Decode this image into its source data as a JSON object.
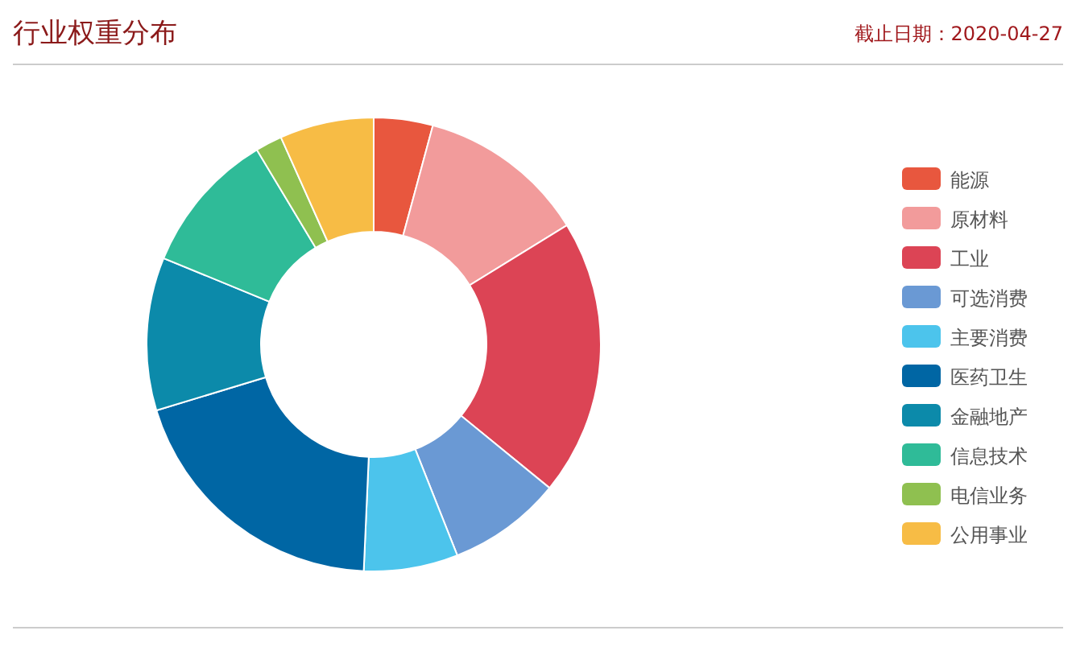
{
  "chart_data": {
    "type": "donut",
    "title": "行业权重分布",
    "subtitle": "截止日期：2020-04-27",
    "categories": [
      "能源",
      "原材料",
      "工业",
      "可选消费",
      "主要消费",
      "医药卫生",
      "金融地产",
      "信息技术",
      "电信业务",
      "公用事业"
    ],
    "values": [
      4.2,
      12,
      19.7,
      8.1,
      6.7,
      19.6,
      10.9,
      10.2,
      1.9,
      6.7
    ],
    "colors": [
      "#e8573e",
      "#f29b9b",
      "#dc4455",
      "#6a99d4",
      "#4cc4ec",
      "#0066a4",
      "#0c8aaa",
      "#2fbb98",
      "#8fc050",
      "#f7bc45"
    ],
    "legend": "right"
  }
}
